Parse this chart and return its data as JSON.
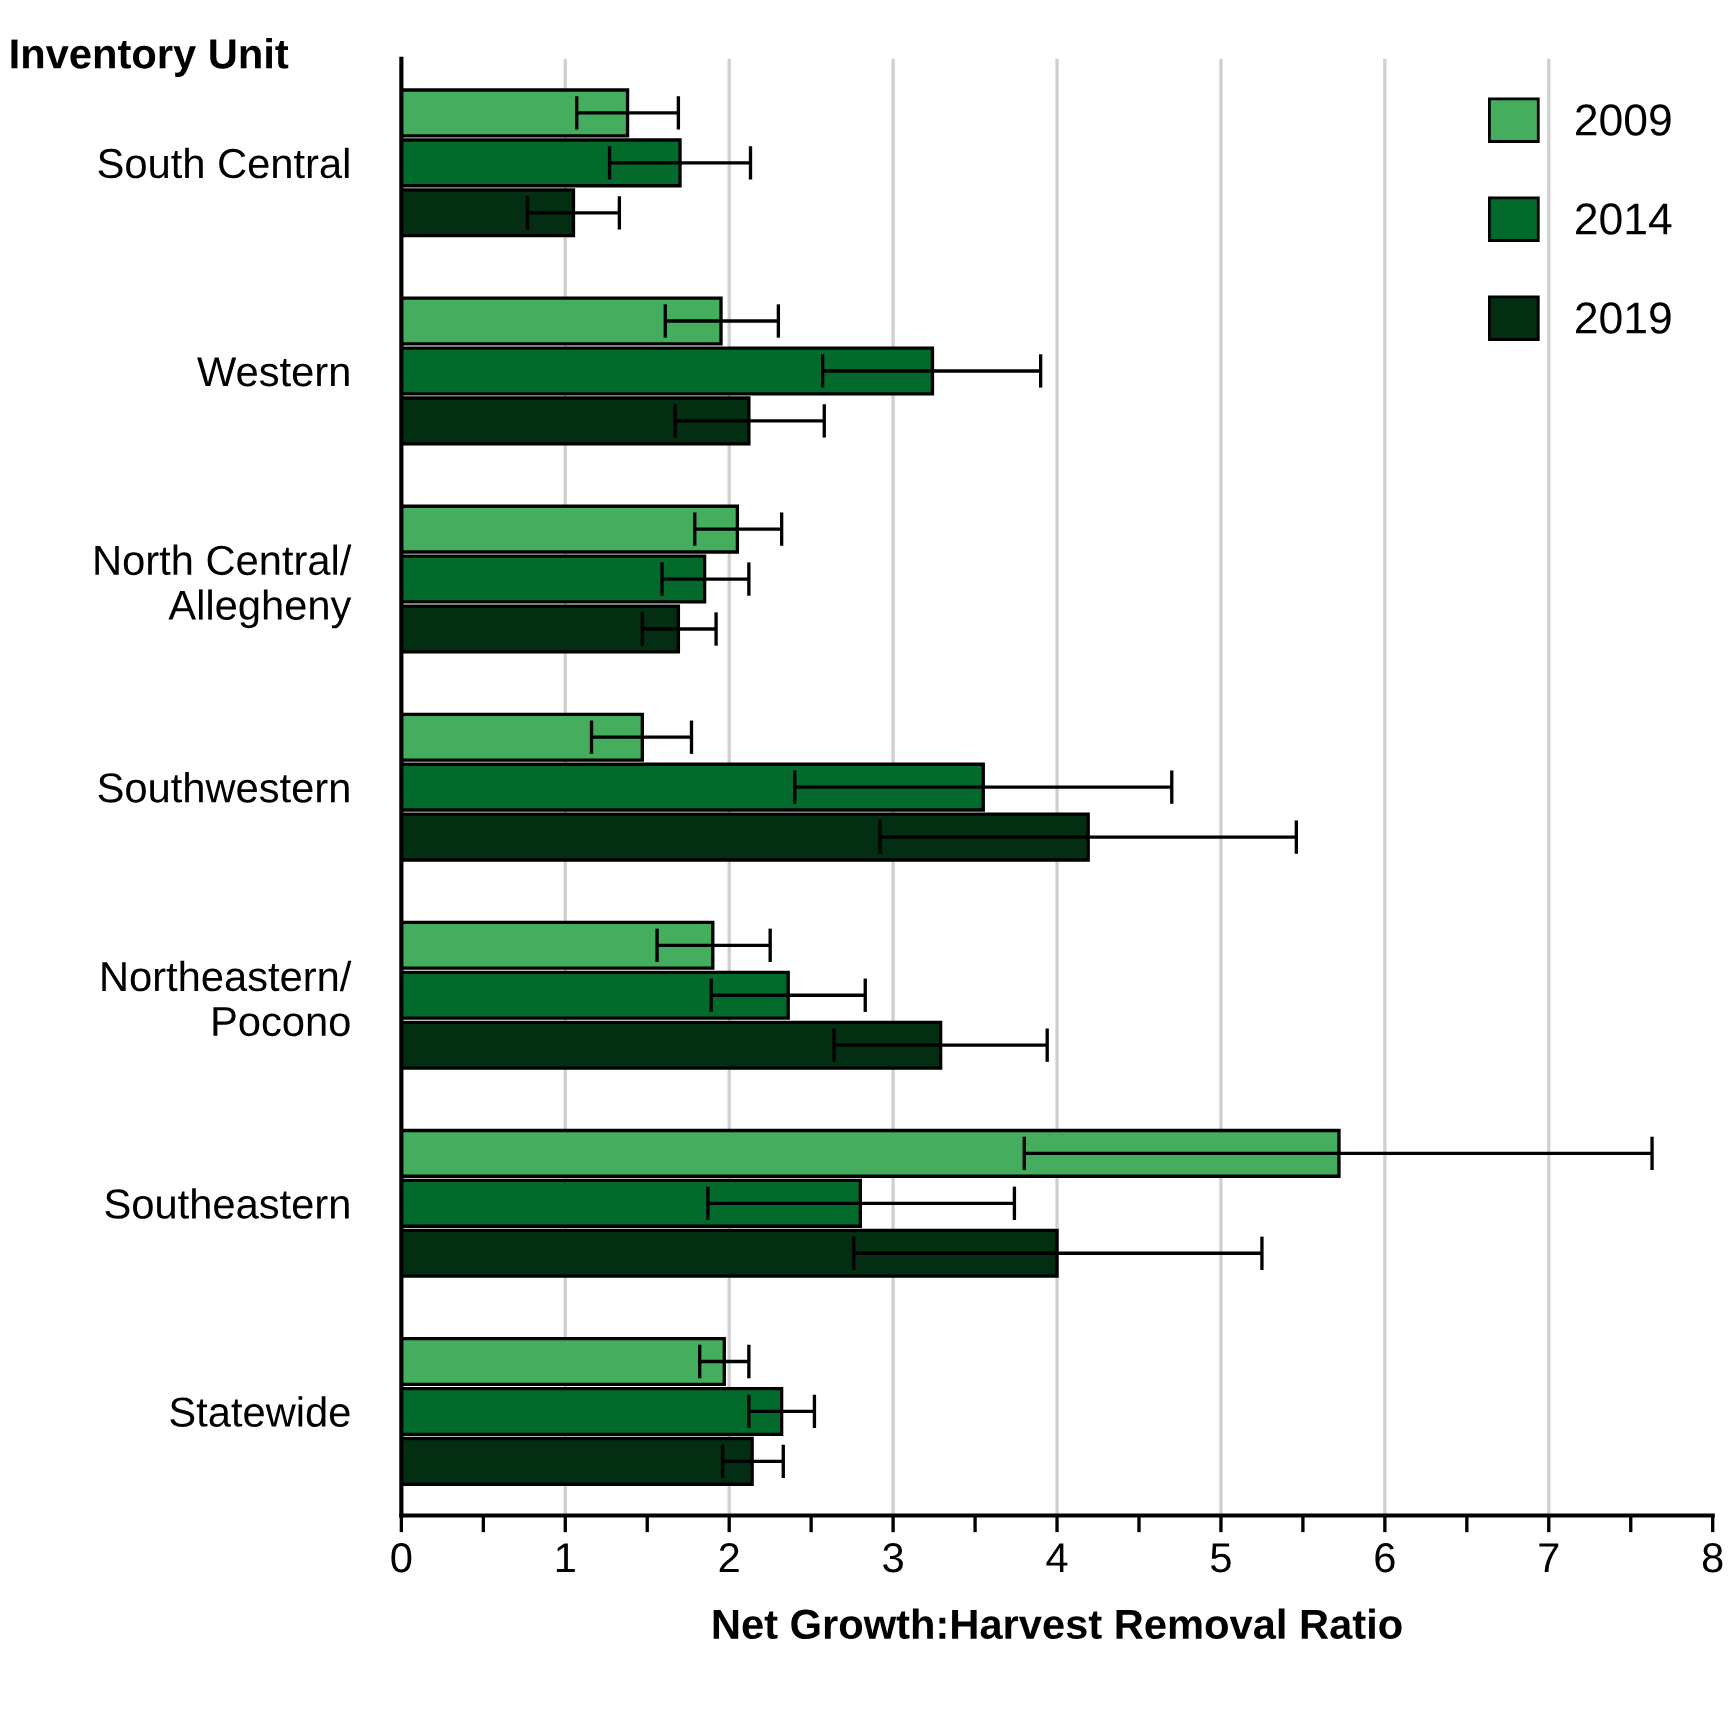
{
  "chart_data": {
    "type": "bar",
    "orientation": "horizontal",
    "ylabel": "Inventory Unit",
    "xlabel": "Net Growth:Harvest Removal Ratio",
    "categories": [
      "South Central",
      "Western",
      "North Central/\nAllegheny",
      "Southwestern",
      "Northeastern/\nPocono",
      "Southeastern",
      "Statewide"
    ],
    "series": [
      {
        "name": "2009",
        "color": "#44ad5e",
        "values": [
          1.38,
          1.95,
          2.05,
          1.47,
          1.9,
          5.72,
          1.97
        ],
        "errors": [
          [
            1.07,
            1.69
          ],
          [
            1.61,
            2.3
          ],
          [
            1.79,
            2.32
          ],
          [
            1.16,
            1.77
          ],
          [
            1.56,
            2.25
          ],
          [
            3.8,
            7.63
          ],
          [
            1.82,
            2.12
          ]
        ]
      },
      {
        "name": "2014",
        "color": "#026b2c",
        "values": [
          1.7,
          3.24,
          1.85,
          3.55,
          2.36,
          2.8,
          2.32
        ],
        "errors": [
          [
            1.27,
            2.13
          ],
          [
            2.57,
            3.9
          ],
          [
            1.59,
            2.12
          ],
          [
            2.4,
            4.7
          ],
          [
            1.89,
            2.83
          ],
          [
            1.87,
            3.74
          ],
          [
            2.12,
            2.52
          ]
        ]
      },
      {
        "name": "2019",
        "color": "#032e12",
        "values": [
          1.05,
          2.12,
          1.69,
          4.19,
          3.29,
          4.0,
          2.14
        ],
        "errors": [
          [
            0.77,
            1.33
          ],
          [
            1.67,
            2.58
          ],
          [
            1.47,
            1.92
          ],
          [
            2.92,
            5.46
          ],
          [
            2.64,
            3.94
          ],
          [
            2.76,
            5.25
          ],
          [
            1.96,
            2.33
          ]
        ]
      }
    ],
    "xlim": [
      0,
      8
    ],
    "xticks": [
      0,
      {
        "value": 0.5,
        "label": null
      },
      1,
      {
        "value": 1.5,
        "label": null
      },
      2,
      {
        "value": 2.5,
        "label": null
      },
      3,
      {
        "value": 3.5,
        "label": null
      },
      4,
      {
        "value": 4.5,
        "label": null
      },
      5,
      {
        "value": 5.5,
        "label": null
      },
      6,
      {
        "value": 6.5,
        "label": null
      },
      7,
      {
        "value": 7.5,
        "label": null
      },
      8
    ],
    "grid": "x",
    "legend": "top right"
  }
}
